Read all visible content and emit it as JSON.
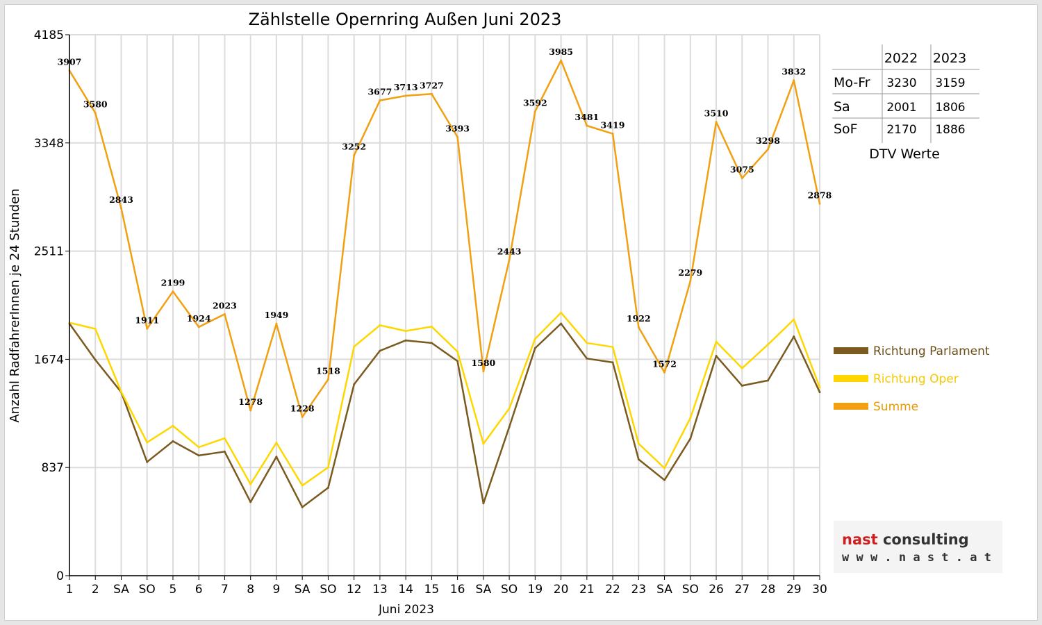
{
  "chart_data": {
    "type": "line",
    "title": "Zählstelle Opernring Außen Juni 2023",
    "xlabel": "Juni 2023",
    "ylabel": "Anzahl RadfahrerInnen je 24 Stunden",
    "ylim": [
      0,
      4185
    ],
    "yticks": [
      "0",
      "837",
      "1674",
      "2511",
      "3348",
      "4185"
    ],
    "categories": [
      "1",
      "2",
      "SA",
      "SO",
      "5",
      "6",
      "7",
      "8",
      "9",
      "SA",
      "SO",
      "12",
      "13",
      "14",
      "15",
      "16",
      "SA",
      "SO",
      "19",
      "20",
      "21",
      "22",
      "23",
      "SA",
      "SO",
      "26",
      "27",
      "28",
      "29",
      "30"
    ],
    "red_categories": [
      3,
      7,
      10,
      17,
      24
    ],
    "grid": true,
    "legend_position": "right",
    "series": [
      {
        "name": "Richtung Parlament",
        "color": "#7a5a1e",
        "values": [
          1950,
          1670,
          1420,
          880,
          1040,
          930,
          960,
          570,
          920,
          530,
          680,
          1480,
          1740,
          1820,
          1800,
          1660,
          560,
          1150,
          1760,
          1950,
          1680,
          1650,
          900,
          740,
          1060,
          1700,
          1470,
          1510,
          1850,
          1420
        ]
      },
      {
        "name": "Richtung Oper",
        "color": "#ffd700",
        "values": [
          1957,
          1910,
          1423,
          1031,
          1159,
          994,
          1063,
          708,
          1029,
          698,
          838,
          1772,
          1937,
          1893,
          1927,
          1733,
          1020,
          1293,
          1832,
          2035,
          1801,
          1769,
          1022,
          832,
          1219,
          1810,
          1605,
          1788,
          1982,
          1458
        ]
      },
      {
        "name": "Summe",
        "color": "#f0a010",
        "values": [
          3907,
          3580,
          2843,
          1911,
          2199,
          1924,
          2023,
          1278,
          1949,
          1228,
          1518,
          3252,
          3677,
          3713,
          3727,
          3393,
          1580,
          2443,
          3592,
          3985,
          3481,
          3419,
          1922,
          1572,
          2279,
          3510,
          3075,
          3298,
          3832,
          2878
        ]
      }
    ]
  },
  "dtv_table": {
    "years": [
      "2022",
      "2023"
    ],
    "rows": [
      {
        "label": "Mo-Fr",
        "v2022": "3230",
        "v2023": "3159"
      },
      {
        "label": "Sa",
        "v2022": "2001",
        "v2023": "1806"
      },
      {
        "label": "SoF",
        "v2022": "2170",
        "v2023": "1886"
      }
    ],
    "caption": "DTV Werte"
  },
  "brand": {
    "name_part1": "nast",
    "name_part2": " consulting",
    "url": "w w w . n a s t . a t",
    "color_part1": "#cc2020",
    "color_part2": "#333333"
  }
}
